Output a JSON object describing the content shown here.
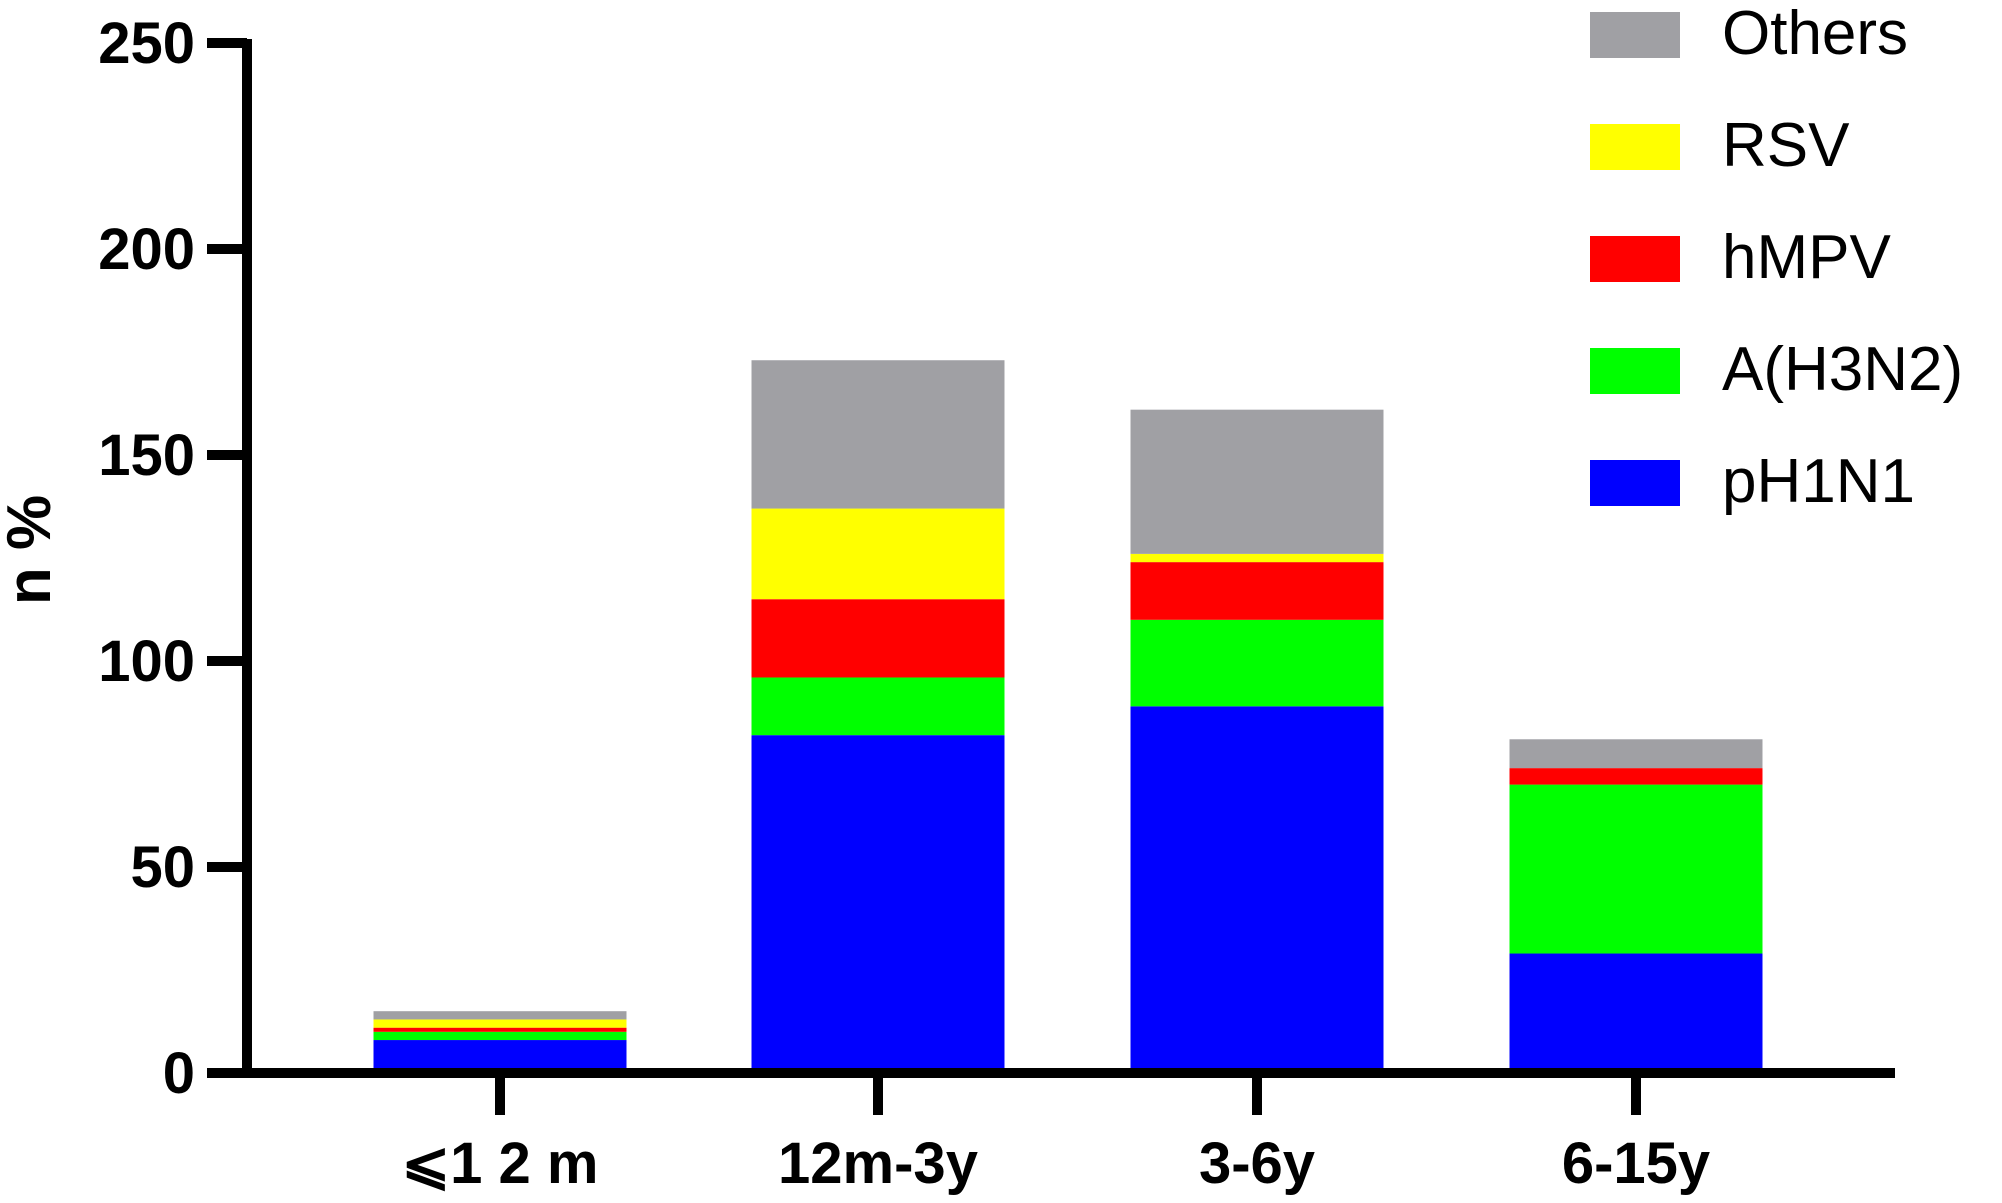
{
  "chart_data": {
    "type": "bar",
    "stacked": true,
    "categories": [
      "⩽1 2 m",
      "12m-3y",
      "3-6y",
      "6-15y"
    ],
    "ylabel": "n %",
    "xlabel": "",
    "ylim": [
      0,
      250
    ],
    "yticks": [
      0,
      50,
      100,
      150,
      200,
      250
    ],
    "grid": false,
    "legend_position": "top-right",
    "series": [
      {
        "name": "pH1N1",
        "color": "#0000FF",
        "values": [
          8,
          82,
          89,
          29
        ]
      },
      {
        "name": "A(H3N2)",
        "color": "#00FF00",
        "values": [
          2,
          14,
          21,
          41
        ]
      },
      {
        "name": "hMPV",
        "color": "#FF0000",
        "values": [
          1,
          19,
          14,
          4
        ]
      },
      {
        "name": "RSV",
        "color": "#FFFF00",
        "values": [
          2,
          22,
          2,
          0
        ]
      },
      {
        "name": "Others",
        "color": "#A0A0A4",
        "values": [
          2,
          36,
          35,
          7
        ]
      }
    ],
    "legend_order": [
      "Others",
      "RSV",
      "hMPV",
      "A(H3N2)",
      "pH1N1"
    ]
  }
}
